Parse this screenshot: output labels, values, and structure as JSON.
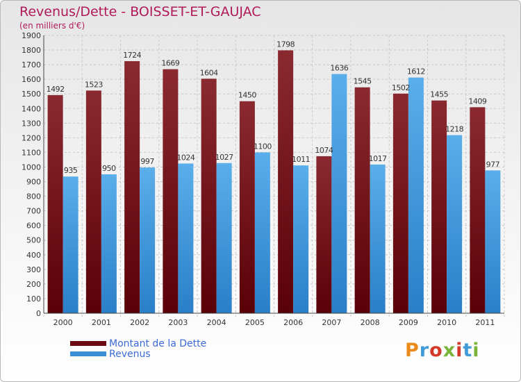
{
  "chart_data": {
    "type": "bar",
    "title": "Revenus/Dette - BOISSET-ET-GAUJAC",
    "subtitle": "(en milliers d'€)",
    "categories": [
      "2000",
      "2001",
      "2002",
      "2003",
      "2004",
      "2005",
      "2006",
      "2007",
      "2008",
      "2009",
      "2010",
      "2011"
    ],
    "series": [
      {
        "name": "Montant de la Dette",
        "values": [
          1492,
          1523,
          1724,
          1669,
          1604,
          1450,
          1798,
          1074,
          1545,
          1502,
          1455,
          1409
        ]
      },
      {
        "name": "Revenus",
        "values": [
          935,
          950,
          997,
          1024,
          1027,
          1100,
          1011,
          1636,
          1017,
          1612,
          1218,
          977
        ]
      }
    ],
    "series_colors": [
      "#6e0b12",
      "#3a8fd6"
    ],
    "ylim": [
      0,
      1900
    ],
    "ytick_step": 100,
    "grid": true,
    "xlabel": "",
    "ylabel": ""
  },
  "logo": {
    "text": "Proxiti"
  }
}
